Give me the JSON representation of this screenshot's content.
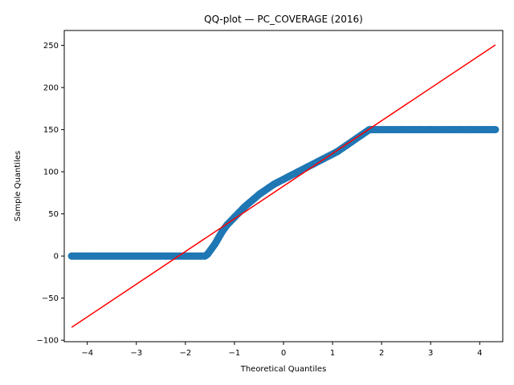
{
  "chart_data": {
    "type": "scatter",
    "title": "QQ-plot — PC_COVERAGE (2016)",
    "xlabel": "Theoretical Quantiles",
    "ylabel": "Sample Quantiles",
    "xlim": [
      -4.47,
      4.47
    ],
    "ylim": [
      -101.7,
      267.7
    ],
    "xticks": [
      -4,
      -3,
      -2,
      -1,
      0,
      1,
      2,
      3,
      4
    ],
    "yticks": [
      -100,
      -50,
      0,
      50,
      100,
      150,
      200,
      250
    ],
    "grid": false,
    "marker_color": "#1f77b4",
    "line_color": "#ff0000",
    "series": [
      {
        "kind": "points",
        "points": [
          [
            -4.32,
            0
          ],
          [
            -4.2,
            0
          ],
          [
            -4.1,
            0
          ],
          [
            -4.0,
            0
          ],
          [
            -3.9,
            0
          ],
          [
            -3.8,
            0
          ],
          [
            -3.7,
            0
          ],
          [
            -3.6,
            0
          ],
          [
            -3.5,
            0
          ],
          [
            -3.4,
            0
          ],
          [
            -3.3,
            0
          ],
          [
            -3.2,
            0
          ],
          [
            -3.1,
            0
          ],
          [
            -3.0,
            0
          ],
          [
            -2.9,
            0
          ],
          [
            -2.8,
            0
          ],
          [
            -2.7,
            0
          ],
          [
            -2.6,
            0
          ],
          [
            -2.5,
            0
          ],
          [
            -2.4,
            0
          ],
          [
            -2.3,
            0
          ],
          [
            -2.2,
            0
          ],
          [
            -2.1,
            0
          ],
          [
            -2.0,
            0
          ],
          [
            -1.9,
            0
          ],
          [
            -1.8,
            0
          ],
          [
            -1.7,
            0
          ],
          [
            -1.6,
            0
          ],
          [
            -1.55,
            2
          ],
          [
            -1.5,
            6
          ],
          [
            -1.45,
            10
          ],
          [
            -1.4,
            14
          ],
          [
            -1.35,
            19
          ],
          [
            -1.3,
            24
          ],
          [
            -1.25,
            29
          ],
          [
            -1.2,
            33
          ],
          [
            -1.15,
            37
          ],
          [
            -1.1,
            40
          ],
          [
            -1.05,
            43
          ],
          [
            -1.0,
            46
          ],
          [
            -0.9,
            52
          ],
          [
            -0.8,
            58
          ],
          [
            -0.7,
            63
          ],
          [
            -0.6,
            68
          ],
          [
            -0.5,
            73
          ],
          [
            -0.4,
            77
          ],
          [
            -0.3,
            81
          ],
          [
            -0.2,
            85
          ],
          [
            -0.1,
            88
          ],
          [
            0.0,
            91
          ],
          [
            0.1,
            94
          ],
          [
            0.2,
            97
          ],
          [
            0.3,
            100
          ],
          [
            0.4,
            103
          ],
          [
            0.5,
            106
          ],
          [
            0.6,
            109
          ],
          [
            0.7,
            112
          ],
          [
            0.8,
            115
          ],
          [
            0.9,
            118
          ],
          [
            1.0,
            121
          ],
          [
            1.1,
            124
          ],
          [
            1.2,
            128
          ],
          [
            1.3,
            132
          ],
          [
            1.4,
            136
          ],
          [
            1.5,
            140
          ],
          [
            1.6,
            144
          ],
          [
            1.7,
            148
          ],
          [
            1.75,
            150
          ],
          [
            1.8,
            150
          ],
          [
            1.9,
            150
          ],
          [
            2.0,
            150
          ],
          [
            2.2,
            150
          ],
          [
            2.4,
            150
          ],
          [
            2.6,
            150
          ],
          [
            2.8,
            150
          ],
          [
            3.0,
            150
          ],
          [
            3.2,
            150
          ],
          [
            3.4,
            150
          ],
          [
            3.6,
            150
          ],
          [
            3.8,
            150
          ],
          [
            4.0,
            150
          ],
          [
            4.1,
            150
          ],
          [
            4.2,
            150
          ],
          [
            4.32,
            150
          ]
        ]
      },
      {
        "kind": "line",
        "points": [
          [
            -4.32,
            -84.7
          ],
          [
            4.32,
            250.6
          ]
        ]
      }
    ]
  }
}
